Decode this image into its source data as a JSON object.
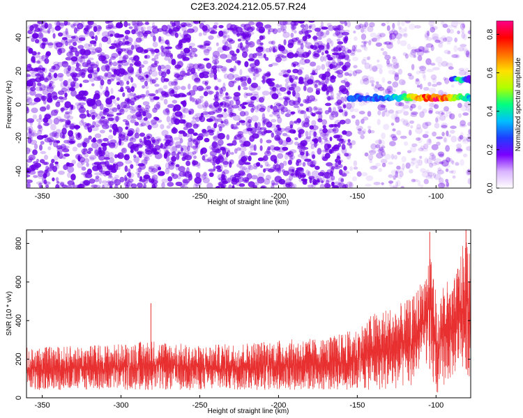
{
  "title": "C2E3.2024.212.05.57.R24",
  "colors": {
    "snr_line": "#e83030",
    "spec_base": "#6a00e6",
    "frame": "#000000"
  },
  "colorbar": {
    "label": "Normalized spectral amplitude",
    "range": [
      0.0,
      0.87
    ],
    "ticks": [
      {
        "value": 0.0,
        "label": "0.0"
      },
      {
        "value": 0.2,
        "label": "0.2"
      },
      {
        "value": 0.4,
        "label": "0.4"
      },
      {
        "value": 0.6,
        "label": "0.6"
      },
      {
        "value": 0.8,
        "label": "0.8"
      }
    ],
    "colormap": [
      "#ffffff",
      "#d9b3ff",
      "#7a00ff",
      "#1f3cff",
      "#00bfff",
      "#00ff80",
      "#b0ff00",
      "#ffe000",
      "#ff7000",
      "#ff0000",
      "#ff0088"
    ]
  },
  "chart_data": [
    {
      "type": "heatmap",
      "title": "C2E3.2024.212.05.57.R24",
      "xlabel": "Height of straight line (km)",
      "ylabel": "Frequency (Hz)",
      "xlim": [
        -360,
        -78
      ],
      "ylim": [
        -50,
        50
      ],
      "xticks": [
        {
          "value": -350,
          "label": "-350"
        },
        {
          "value": -300,
          "label": "-300"
        },
        {
          "value": -250,
          "label": "-250"
        },
        {
          "value": -200,
          "label": "-200"
        },
        {
          "value": -150,
          "label": "-150"
        },
        {
          "value": -100,
          "label": "-100"
        }
      ],
      "yticks": [
        {
          "value": -40,
          "label": "-40"
        },
        {
          "value": -20,
          "label": "-20"
        },
        {
          "value": 0,
          "label": "0"
        },
        {
          "value": 20,
          "label": "20"
        },
        {
          "value": 40,
          "label": "40"
        }
      ],
      "noise": {
        "dense_region": [
          -360,
          -155
        ],
        "dense_amplitude": [
          0.05,
          0.25
        ],
        "sparse_region": [
          -155,
          -78
        ],
        "sparse_amplitude": [
          0.02,
          0.12
        ]
      },
      "signal_features": [
        {
          "x_start": -155,
          "x_end": -78,
          "freq": 4,
          "peak_amplitude": 0.87,
          "peak_x": -102
        },
        {
          "x_start": -90,
          "x_end": -78,
          "freq": 15,
          "peak_amplitude": 0.6,
          "peak_x": -85
        }
      ]
    },
    {
      "type": "line",
      "xlabel": "Height of straight line (km)",
      "ylabel": "SNR (10 * v/v)",
      "xlim": [
        -360,
        -78
      ],
      "ylim": [
        0,
        870
      ],
      "xticks": [
        {
          "value": -350,
          "label": "-350"
        },
        {
          "value": -300,
          "label": "-300"
        },
        {
          "value": -250,
          "label": "-250"
        },
        {
          "value": -200,
          "label": "-200"
        },
        {
          "value": -150,
          "label": "-150"
        },
        {
          "value": -100,
          "label": "-100"
        }
      ],
      "yticks": [
        {
          "value": 0,
          "label": "0"
        },
        {
          "value": 200,
          "label": "200"
        },
        {
          "value": 400,
          "label": "400"
        },
        {
          "value": 600,
          "label": "600"
        },
        {
          "value": 800,
          "label": "800"
        }
      ],
      "envelope": [
        {
          "x": -360,
          "lo": 40,
          "hi": 260
        },
        {
          "x": -300,
          "lo": 40,
          "hi": 280
        },
        {
          "x": -280,
          "lo": 40,
          "hi": 300
        },
        {
          "x": -250,
          "lo": 40,
          "hi": 270
        },
        {
          "x": -200,
          "lo": 40,
          "hi": 300
        },
        {
          "x": -170,
          "lo": 40,
          "hi": 310
        },
        {
          "x": -150,
          "lo": 40,
          "hi": 360
        },
        {
          "x": -140,
          "lo": 40,
          "hi": 440
        },
        {
          "x": -125,
          "lo": 40,
          "hi": 480
        },
        {
          "x": -115,
          "lo": 60,
          "hi": 520
        },
        {
          "x": -107,
          "lo": 200,
          "hi": 650
        },
        {
          "x": -103,
          "lo": 60,
          "hi": 820
        },
        {
          "x": -99,
          "lo": 10,
          "hi": 420
        },
        {
          "x": -95,
          "lo": 60,
          "hi": 640
        },
        {
          "x": -90,
          "lo": 100,
          "hi": 560
        },
        {
          "x": -85,
          "lo": 160,
          "hi": 740
        },
        {
          "x": -80,
          "lo": 120,
          "hi": 860
        },
        {
          "x": -78,
          "lo": 80,
          "hi": 700
        }
      ],
      "spikes": [
        {
          "x": -281,
          "value": 490
        },
        {
          "x": -104,
          "value": 860
        },
        {
          "x": -81,
          "value": 870
        }
      ]
    }
  ]
}
